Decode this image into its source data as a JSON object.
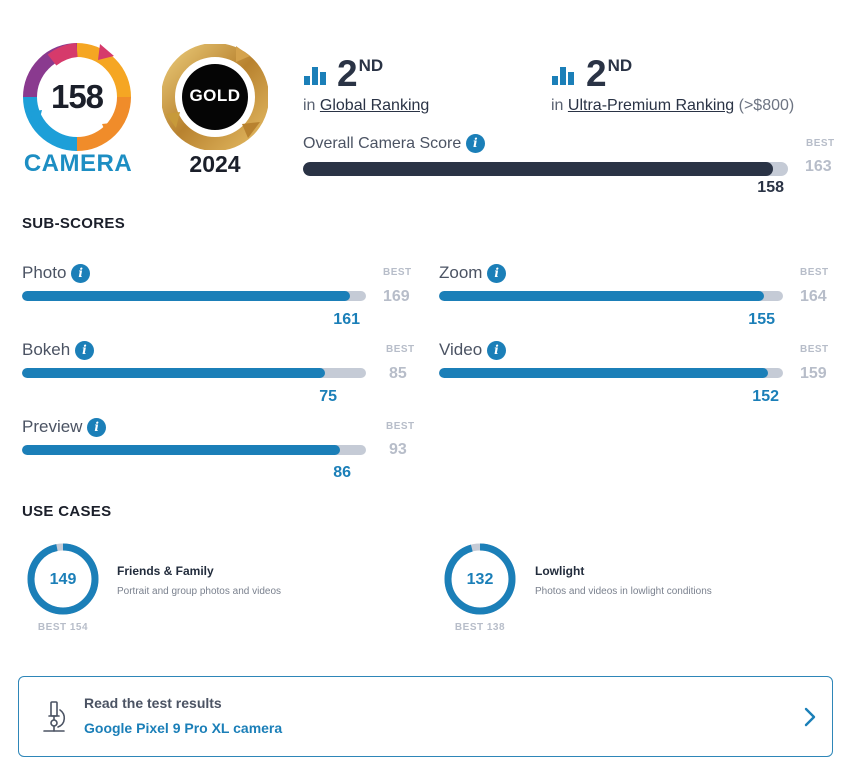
{
  "badge": {
    "camera_score": "158",
    "camera_label": "CAMERA",
    "gold_label": "GOLD",
    "year": "2024"
  },
  "rankings": [
    {
      "rank": "2",
      "suffix": "ND",
      "prefix": "in",
      "link": "Global Ranking",
      "extra": ""
    },
    {
      "rank": "2",
      "suffix": "ND",
      "prefix": "in",
      "link": "Ultra-Premium Ranking",
      "extra": "(>$800)"
    }
  ],
  "overall": {
    "label": "Overall Camera Score",
    "score": "158",
    "best_label": "BEST",
    "best": "163",
    "fraction": 0.969
  },
  "subscores": {
    "title": "SUB-SCORES",
    "items": [
      {
        "name": "Photo",
        "score": "161",
        "best_label": "BEST",
        "best": "169",
        "fraction": 0.953
      },
      {
        "name": "Zoom",
        "score": "155",
        "best_label": "BEST",
        "best": "164",
        "fraction": 0.945
      },
      {
        "name": "Bokeh",
        "score": "75",
        "best_label": "BEST",
        "best": "85",
        "fraction": 0.882
      },
      {
        "name": "Video",
        "score": "152",
        "best_label": "BEST",
        "best": "159",
        "fraction": 0.956
      },
      {
        "name": "Preview",
        "score": "86",
        "best_label": "BEST",
        "best": "93",
        "fraction": 0.925
      }
    ]
  },
  "use_cases": {
    "title": "USE CASES",
    "items": [
      {
        "score": "149",
        "best_text": "BEST 154",
        "title": "Friends & Family",
        "desc": "Portrait and group photos and videos",
        "fraction": 0.968
      },
      {
        "score": "132",
        "best_text": "BEST 138",
        "title": "Lowlight",
        "desc": "Photos and videos in lowlight conditions",
        "fraction": 0.957
      }
    ]
  },
  "read_card": {
    "title": "Read the test results",
    "link": "Google Pixel 9 Pro XL camera"
  },
  "icons": {
    "info": "info-icon",
    "ranking": "bar-chart-icon",
    "microscope": "microscope-icon",
    "chevron": "chevron-right-icon"
  },
  "colors": {
    "accent": "#1b7fb8",
    "dark": "#2a3345",
    "track": "#c5cbd6",
    "gold": "#c79a3a"
  }
}
